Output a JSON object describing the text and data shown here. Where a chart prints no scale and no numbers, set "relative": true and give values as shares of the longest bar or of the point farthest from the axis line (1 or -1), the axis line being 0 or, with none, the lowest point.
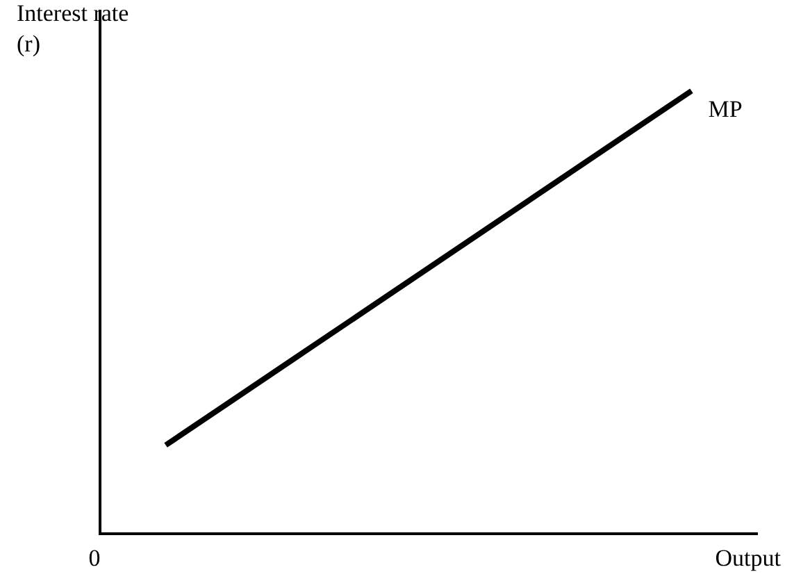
{
  "chart_data": {
    "type": "line",
    "ylabel": "Interest rate (r)",
    "xlabel": "Output",
    "annotations": [
      "0"
    ],
    "relative": true,
    "categories": [
      null,
      null,
      null,
      null,
      null,
      null,
      null,
      null,
      null,
      null,
      null
    ],
    "series": [
      {
        "name": "MP",
        "color": "#000000",
        "values": [
          null,
          0.2,
          0.3,
          0.4,
          0.5,
          0.6,
          0.7,
          0.8,
          0.9,
          1.0,
          null
        ]
      }
    ],
    "legend": false,
    "grid": false,
    "marker": "none",
    "line_style": "solid"
  }
}
